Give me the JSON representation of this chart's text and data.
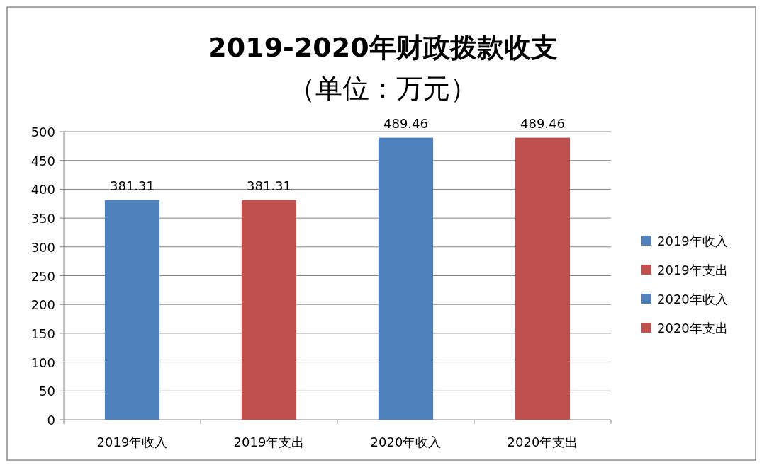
{
  "chart_data": {
    "type": "bar",
    "title": "2019-2020年财政拨款收支",
    "subtitle": "（单位：万元）",
    "categories": [
      "2019年收入",
      "2019年支出",
      "2020年收入",
      "2020年支出"
    ],
    "series": [
      {
        "name": "2019年收入",
        "color": "#4f81bd",
        "values": [
          381.31,
          null,
          null,
          null
        ]
      },
      {
        "name": "2019年支出",
        "color": "#c0504d",
        "values": [
          null,
          381.31,
          null,
          null
        ]
      },
      {
        "name": "2020年收入",
        "color": "#4f81bd",
        "values": [
          null,
          null,
          489.46,
          null
        ]
      },
      {
        "name": "2020年支出",
        "color": "#c0504d",
        "values": [
          null,
          null,
          null,
          489.46
        ]
      }
    ],
    "ylim": [
      0,
      500
    ],
    "yticks": [
      0,
      50,
      100,
      150,
      200,
      250,
      300,
      350,
      400,
      450,
      500
    ],
    "grid": "y",
    "legend": "right",
    "data_labels": true
  }
}
